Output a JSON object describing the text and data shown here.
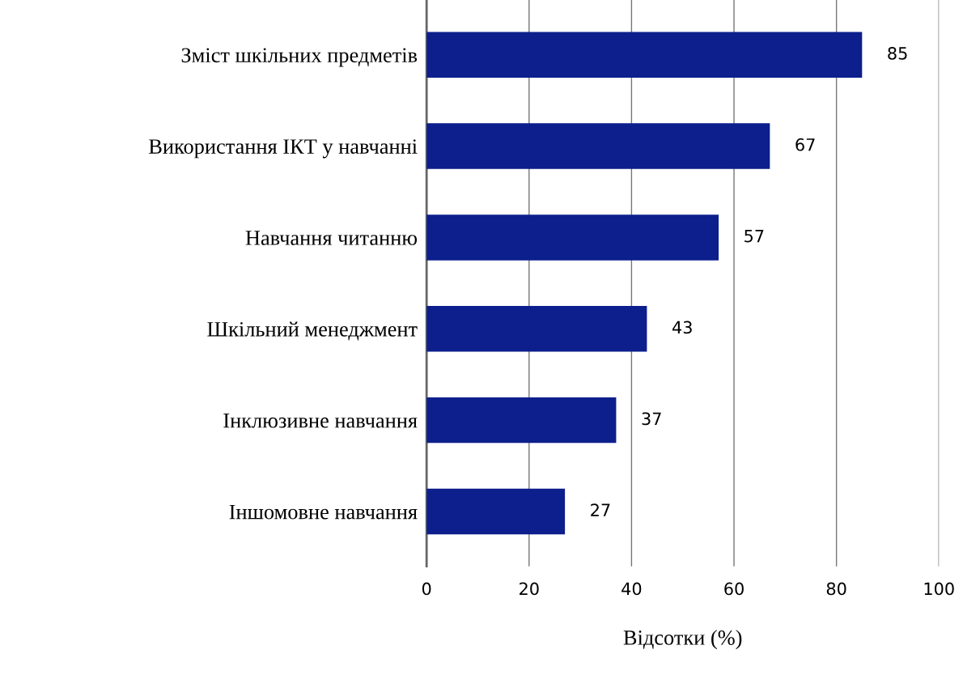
{
  "chart_data": {
    "type": "bar",
    "orientation": "horizontal",
    "xlabel": "Відсотки (%)",
    "categories": [
      "Зміст шкільних предметів",
      "Використання ІКТ у навчанні",
      "Навчання читанню",
      "Шкільний менеджмент",
      "Інклюзивне навчання",
      "Іншомовне навчання"
    ],
    "values": [
      85,
      67,
      57,
      43,
      37,
      27
    ],
    "color": "#0c1f8c",
    "xlim": [
      0,
      100
    ],
    "xticks": [
      0,
      20,
      40,
      60,
      80,
      100
    ],
    "grid": "x",
    "data_labels": true
  }
}
